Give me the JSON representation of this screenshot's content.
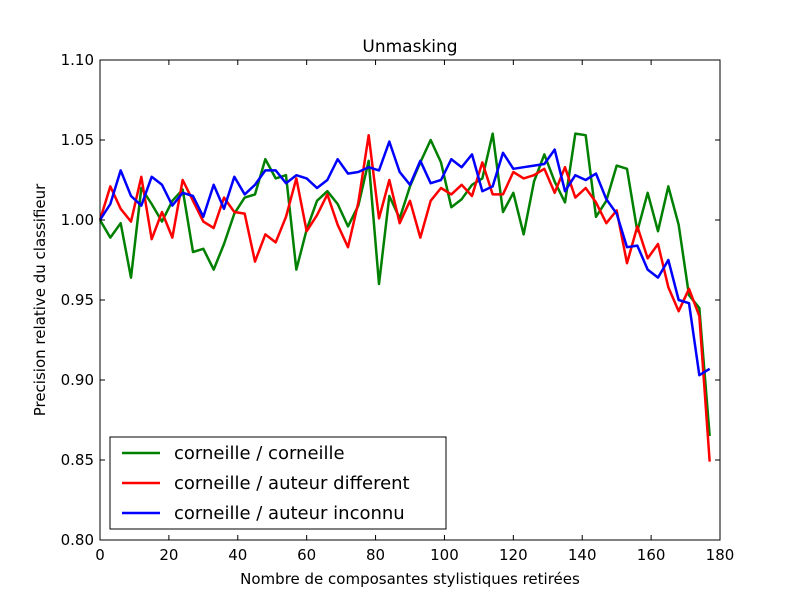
{
  "chart_data": {
    "type": "line",
    "title": "Unmasking",
    "xlabel": "Nombre de composantes stylistiques retirées",
    "ylabel": "Precision relative du classifieur",
    "xlim": [
      0,
      180
    ],
    "ylim": [
      0.8,
      1.1
    ],
    "xticks": [
      0,
      20,
      40,
      60,
      80,
      100,
      120,
      140,
      160,
      180
    ],
    "yticks": [
      0.8,
      0.85,
      0.9,
      0.95,
      1.0,
      1.05,
      1.1
    ],
    "xtick_labels": [
      "0",
      "20",
      "40",
      "60",
      "80",
      "100",
      "120",
      "140",
      "160",
      "180"
    ],
    "ytick_labels": [
      "0.80",
      "0.85",
      "0.90",
      "0.95",
      "1.00",
      "1.05",
      "1.10"
    ],
    "grid": false,
    "legend_position": "lower-left",
    "x": [
      0,
      3,
      6,
      9,
      12,
      15,
      18,
      21,
      24,
      27,
      30,
      33,
      36,
      39,
      42,
      45,
      48,
      51,
      54,
      57,
      60,
      63,
      66,
      69,
      72,
      75,
      78,
      81,
      84,
      87,
      90,
      93,
      96,
      99,
      102,
      105,
      108,
      111,
      114,
      117,
      120,
      123,
      126,
      129,
      132,
      135,
      138,
      141,
      144,
      147,
      150,
      153,
      156,
      159,
      162,
      165,
      168,
      171,
      174,
      177
    ],
    "series": [
      {
        "name": "corneille / corneille",
        "color": "#008000",
        "values": [
          1.0,
          0.989,
          0.998,
          0.964,
          1.02,
          1.01,
          0.999,
          1.012,
          1.019,
          0.98,
          0.982,
          0.969,
          0.985,
          1.004,
          1.014,
          1.016,
          1.038,
          1.026,
          1.028,
          0.969,
          0.994,
          1.012,
          1.018,
          1.01,
          0.996,
          1.009,
          1.037,
          0.96,
          1.015,
          1.001,
          1.021,
          1.036,
          1.05,
          1.036,
          1.008,
          1.013,
          1.022,
          1.026,
          1.054,
          1.005,
          1.017,
          0.991,
          1.024,
          1.041,
          1.024,
          1.011,
          1.054,
          1.053,
          1.002,
          1.012,
          1.034,
          1.032,
          0.993,
          1.017,
          0.993,
          1.021,
          0.997,
          0.953,
          0.945,
          0.865
        ]
      },
      {
        "name": "corneille / auteur different",
        "color": "#ff0000",
        "values": [
          1.0,
          1.021,
          1.007,
          0.999,
          1.027,
          0.988,
          1.005,
          0.989,
          1.025,
          1.012,
          0.999,
          0.995,
          1.014,
          1.005,
          1.004,
          0.974,
          0.991,
          0.986,
          1.002,
          1.026,
          0.993,
          1.003,
          1.016,
          0.997,
          0.983,
          1.011,
          1.053,
          1.001,
          1.025,
          0.998,
          1.012,
          0.989,
          1.012,
          1.02,
          1.016,
          1.022,
          1.015,
          1.036,
          1.016,
          1.016,
          1.03,
          1.026,
          1.028,
          1.032,
          1.017,
          1.033,
          1.014,
          1.02,
          1.011,
          0.998,
          1.006,
          0.973,
          0.996,
          0.976,
          0.985,
          0.958,
          0.943,
          0.957,
          0.94,
          0.849
        ]
      },
      {
        "name": "corneille / auteur inconnu",
        "color": "#0000ff",
        "values": [
          1.0,
          1.01,
          1.031,
          1.015,
          1.009,
          1.027,
          1.022,
          1.009,
          1.017,
          1.015,
          1.002,
          1.022,
          1.007,
          1.027,
          1.016,
          1.022,
          1.031,
          1.031,
          1.023,
          1.028,
          1.026,
          1.02,
          1.025,
          1.038,
          1.029,
          1.03,
          1.033,
          1.031,
          1.049,
          1.03,
          1.022,
          1.037,
          1.023,
          1.025,
          1.038,
          1.033,
          1.041,
          1.018,
          1.021,
          1.042,
          1.032,
          1.033,
          1.034,
          1.035,
          1.044,
          1.018,
          1.028,
          1.025,
          1.029,
          1.013,
          1.004,
          0.983,
          0.984,
          0.969,
          0.964,
          0.975,
          0.95,
          0.948,
          0.903,
          0.907
        ]
      }
    ]
  }
}
